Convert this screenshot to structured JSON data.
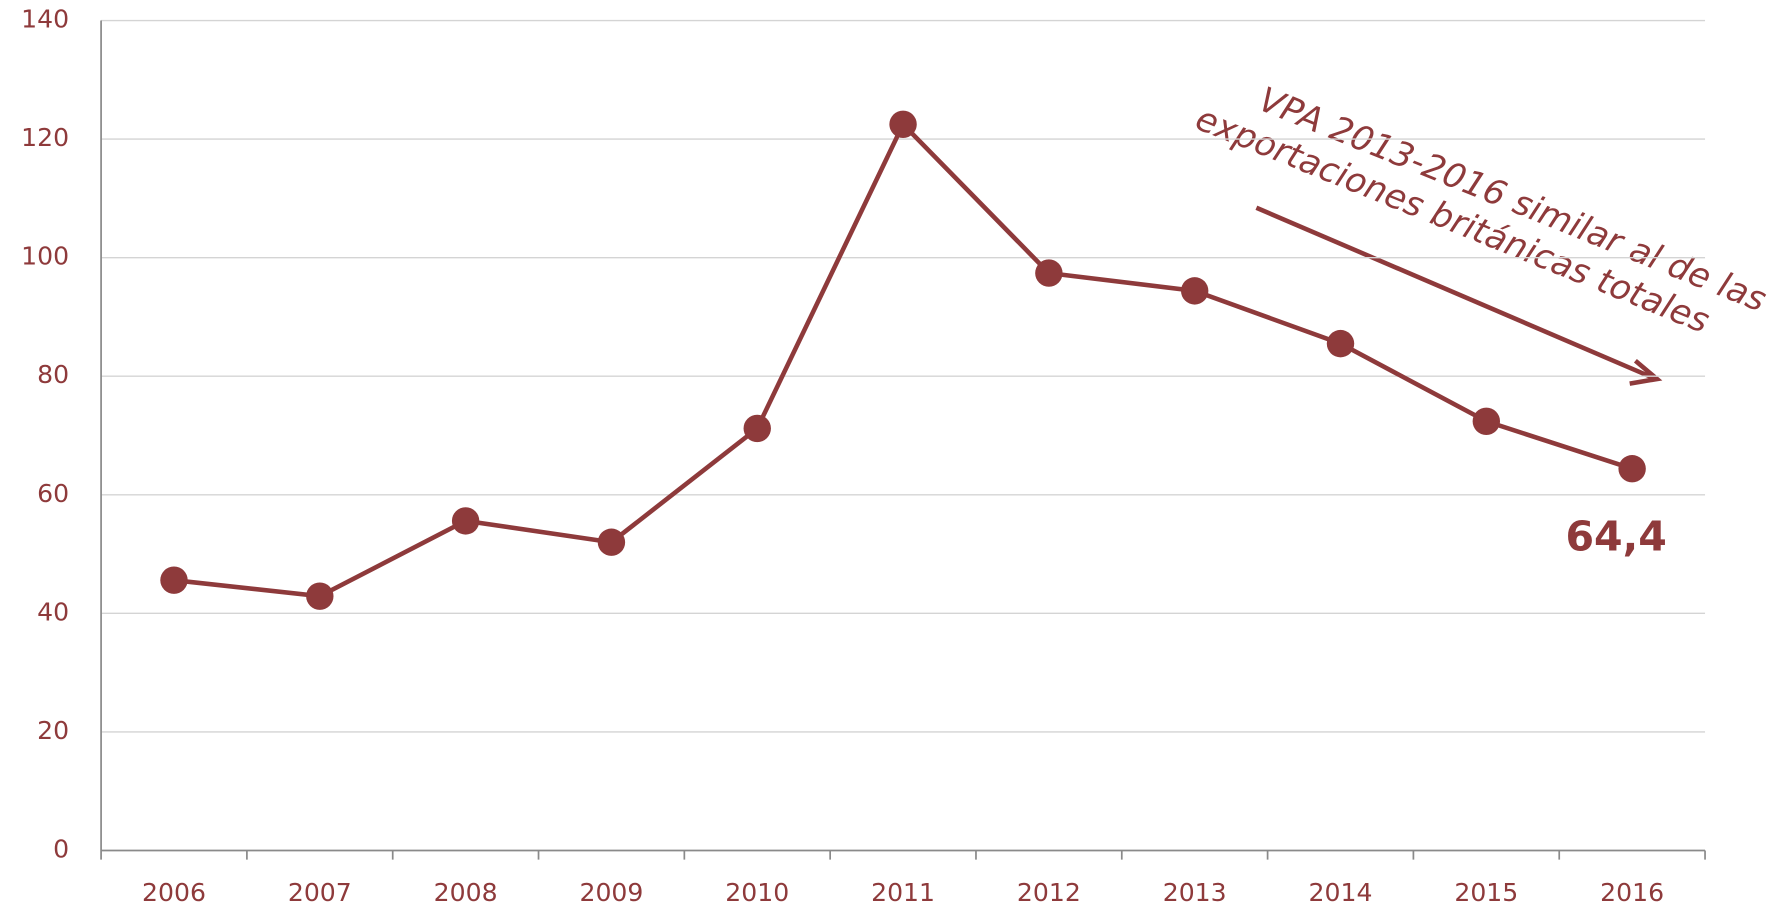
{
  "chart_data": {
    "type": "line",
    "categories": [
      "2006",
      "2007",
      "2008",
      "2009",
      "2010",
      "2011",
      "2012",
      "2013",
      "2014",
      "2015",
      "2016"
    ],
    "series": [
      {
        "name": "VPA",
        "color": "#8e3a3b",
        "values": [
          45.6,
          42.9,
          55.6,
          52.0,
          71.2,
          122.5,
          97.4,
          94.4,
          85.5,
          72.4,
          64.4
        ],
        "value_labels": [
          null,
          null,
          null,
          null,
          null,
          null,
          null,
          null,
          null,
          null,
          "64,4"
        ]
      }
    ],
    "ylim": [
      0,
      140
    ],
    "yticks": [
      0,
      20,
      40,
      60,
      80,
      100,
      120,
      140
    ],
    "grid": true,
    "annotation": [
      "VPA 2013-2016 similar al de las",
      "exportaciones británicas totales"
    ]
  }
}
